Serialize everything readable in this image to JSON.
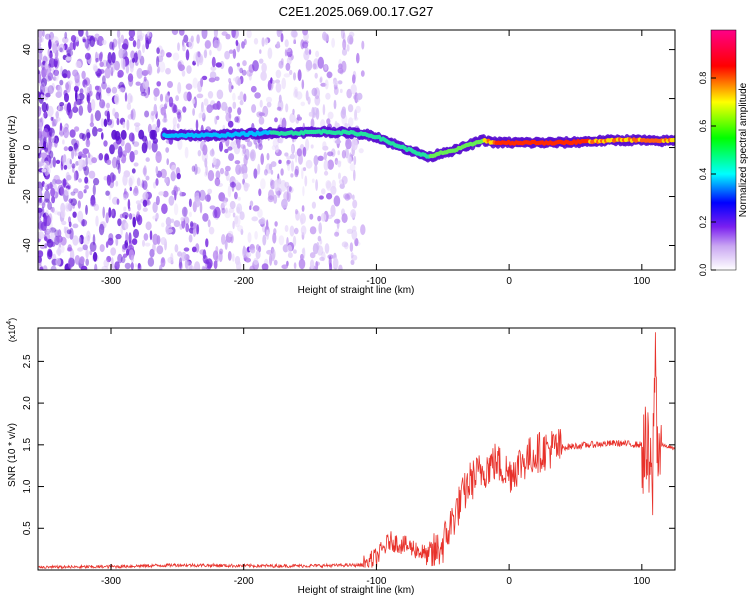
{
  "title": "C2E1.2025.069.00.17.G27",
  "chart_data": [
    {
      "type": "heatmap",
      "xlabel": "Height of straight line (km)",
      "ylabel": "Frequency (Hz)",
      "xlim": [
        -355,
        125
      ],
      "ylim": [
        -50,
        48
      ],
      "x_ticks": [
        -300,
        -200,
        -100,
        0,
        100
      ],
      "y_ticks": [
        -40,
        -20,
        0,
        20,
        40
      ],
      "colorbar": {
        "label": "Normalized spectral amplitude",
        "range": [
          0,
          1
        ],
        "ticks": [
          "0.0",
          "0.2",
          "0.4",
          "0.6",
          "0.8"
        ],
        "colormap": [
          "#ffffff",
          "#8a2be2",
          "#0000ff",
          "#00ffff",
          "#00ff00",
          "#ffff00",
          "#ff0000",
          "#ff00a0"
        ]
      },
      "ridge": {
        "x": [
          -260,
          -240,
          -220,
          -200,
          -180,
          -160,
          -140,
          -120,
          -110,
          -100,
          -90,
          -80,
          -70,
          -60,
          -50,
          -40,
          -30,
          -20,
          -10,
          0,
          20,
          40,
          60,
          80,
          100,
          110,
          125
        ],
        "y": [
          5,
          5,
          5,
          5.5,
          6,
          6,
          6.5,
          6,
          5.5,
          4.5,
          2,
          0,
          -2,
          -4,
          -2,
          -1,
          1,
          3,
          2,
          2,
          2,
          2,
          2.5,
          3,
          3,
          2.5,
          3
        ]
      },
      "scatter_region": {
        "x": [
          -355,
          -110
        ],
        "y": [
          -50,
          48
        ]
      },
      "grid": false
    },
    {
      "type": "line",
      "xlabel": "Height of straight line (km)",
      "ylabel": "SNR (10 * v/v)",
      "y_multiplier": "(x10",
      "y_multiplier_exp": "4",
      "color": "#e8322b",
      "xlim": [
        -355,
        125
      ],
      "ylim": [
        0,
        2.9
      ],
      "x_ticks": [
        -300,
        -200,
        -100,
        0,
        100
      ],
      "y_ticks": [
        "0.5",
        "1.0",
        "1.5",
        "2.0",
        "2.5"
      ],
      "x": [
        -355,
        -300,
        -250,
        -200,
        -150,
        -110,
        -100,
        -90,
        -80,
        -70,
        -60,
        -50,
        -40,
        -30,
        -20,
        -10,
        0,
        10,
        20,
        30,
        40,
        60,
        80,
        100,
        105,
        108,
        110,
        112,
        115,
        125
      ],
      "y": [
        0.03,
        0.04,
        0.06,
        0.05,
        0.05,
        0.06,
        0.15,
        0.35,
        0.3,
        0.25,
        0.15,
        0.3,
        0.7,
        1.05,
        1.2,
        1.3,
        1.15,
        1.3,
        1.4,
        1.45,
        1.47,
        1.5,
        1.52,
        1.5,
        1.3,
        0.9,
        2.7,
        1.45,
        1.5,
        1.45
      ],
      "grid": false
    }
  ]
}
